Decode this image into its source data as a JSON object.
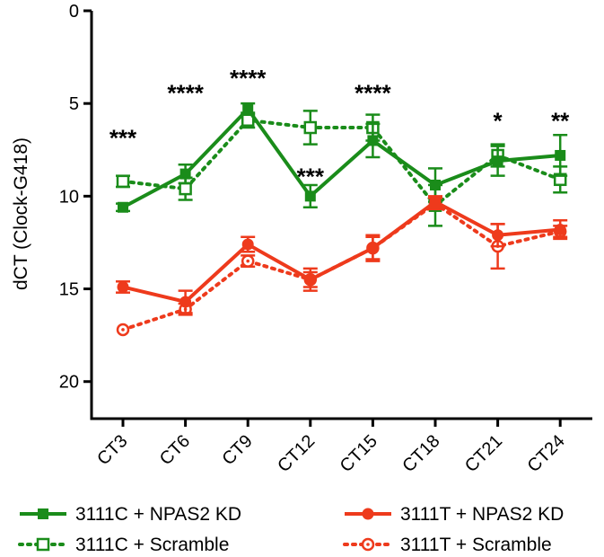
{
  "chart_data": {
    "type": "line",
    "title": "",
    "xlabel": "",
    "ylabel": "dCT (Clock-G418)",
    "ylim": [
      0,
      22
    ],
    "y_inverted": true,
    "y_ticks": [
      "0",
      "5",
      "10",
      "15",
      "20"
    ],
    "y_tick_values": [
      0,
      5,
      10,
      15,
      20
    ],
    "categories": [
      "CT3",
      "CT6",
      "CT9",
      "CT12",
      "CT15",
      "CT18",
      "CT21",
      "CT24"
    ],
    "series": [
      {
        "name": "3111C + NPAS2 KD",
        "color": "#1a8c1a",
        "line_style": "solid",
        "marker": "filled-square",
        "values": [
          10.6,
          8.8,
          5.3,
          10.0,
          7.0,
          9.4,
          8.1,
          7.8
        ],
        "errors": [
          0.2,
          0.5,
          0.3,
          0.6,
          0.9,
          0.9,
          0.8,
          1.1
        ]
      },
      {
        "name": "3111C + Scramble",
        "color": "#1a8c1a",
        "line_style": "dotted",
        "marker": "open-square",
        "values": [
          9.2,
          9.6,
          5.9,
          6.3,
          6.3,
          10.5,
          7.8,
          9.1
        ],
        "errors": [
          0.3,
          0.6,
          0.4,
          0.9,
          0.7,
          1.1,
          0.6,
          0.7
        ]
      },
      {
        "name": "3111T + NPAS2 KD",
        "color": "#ee3a1c",
        "line_style": "solid",
        "marker": "filled-circle",
        "values": [
          14.9,
          15.7,
          12.6,
          14.5,
          12.8,
          10.3,
          12.1,
          11.8
        ],
        "errors": [
          0.3,
          0.6,
          0.4,
          0.6,
          0.6,
          0.3,
          0.6,
          0.5
        ]
      },
      {
        "name": "3111T + Scramble",
        "color": "#ee3a1c",
        "line_style": "dotted",
        "marker": "open-circle",
        "values": [
          17.2,
          16.1,
          13.5,
          14.5,
          12.8,
          10.4,
          12.7,
          11.9
        ],
        "errors": [
          0.0,
          0.3,
          0.3,
          0.4,
          0.7,
          0.3,
          1.2,
          0.3
        ]
      }
    ],
    "annotations": [
      {
        "text": "***",
        "category": "CT3",
        "y": 6.7
      },
      {
        "text": "****",
        "category": "CT6",
        "y": 4.3
      },
      {
        "text": "****",
        "category": "CT9",
        "y": 3.5
      },
      {
        "text": "***",
        "category": "CT12",
        "y": 8.8
      },
      {
        "text": "****",
        "category": "CT15",
        "y": 4.3
      },
      {
        "text": "*",
        "category": "CT21",
        "y": 5.8
      },
      {
        "text": "**",
        "category": "CT24",
        "y": 5.8
      }
    ],
    "legend_position": "bottom"
  }
}
